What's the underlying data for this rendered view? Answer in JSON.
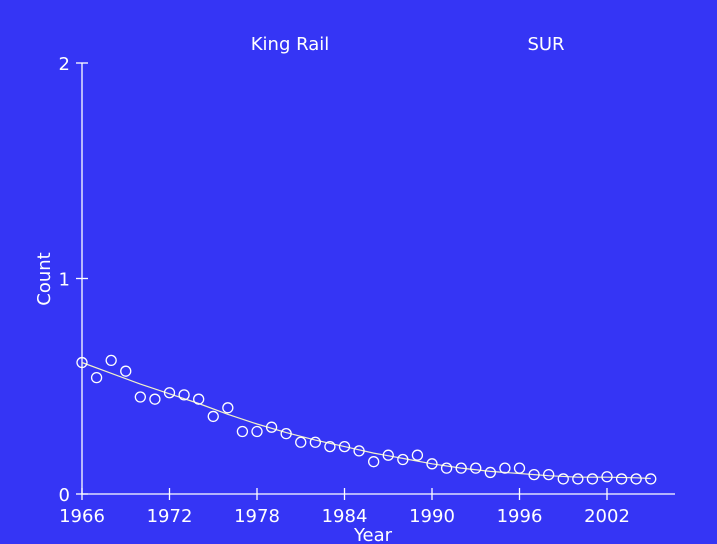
{
  "chart_data": {
    "type": "scatter",
    "title": "King Rail",
    "subtitle": "SUR",
    "xlabel": "Year",
    "ylabel": "Count",
    "xlim": [
      1966,
      2004
    ],
    "ylim": [
      0,
      2
    ],
    "xticks": [
      "1966",
      "1972",
      "1978",
      "1984",
      "1990",
      "1996",
      "2002"
    ],
    "yticks": [
      "0",
      "1",
      "2"
    ],
    "colors": {
      "background": "#3535f5",
      "foreground": "#ffffff",
      "trend": "#f2f2c8"
    },
    "series": [
      {
        "kind": "points",
        "x": [
          1966,
          1967,
          1968,
          1969,
          1970,
          1971,
          1972,
          1973,
          1974,
          1975,
          1976,
          1977,
          1978,
          1979,
          1980,
          1981,
          1982,
          1983,
          1984,
          1985,
          1986,
          1987,
          1988,
          1989,
          1990,
          1991,
          1992,
          1993,
          1994,
          1995,
          1996,
          1997,
          1998,
          1999,
          2000,
          2001,
          2002,
          2003,
          2004,
          2005
        ],
        "y": [
          0.61,
          0.54,
          0.62,
          0.57,
          0.45,
          0.44,
          0.47,
          0.46,
          0.44,
          0.36,
          0.4,
          0.29,
          0.29,
          0.31,
          0.28,
          0.24,
          0.24,
          0.22,
          0.22,
          0.2,
          0.15,
          0.18,
          0.16,
          0.18,
          0.14,
          0.12,
          0.12,
          0.12,
          0.1,
          0.12,
          0.12,
          0.09,
          0.09,
          0.07,
          0.07,
          0.07,
          0.08,
          0.07,
          0.07,
          0.07
        ]
      },
      {
        "kind": "trend",
        "x": [
          1966,
          1968,
          1970,
          1972,
          1974,
          1976,
          1978,
          1980,
          1982,
          1984,
          1986,
          1988,
          1990,
          1992,
          1994,
          1996,
          1998,
          2000,
          2002,
          2004,
          2005
        ],
        "y": [
          0.61,
          0.56,
          0.51,
          0.465,
          0.42,
          0.37,
          0.325,
          0.285,
          0.25,
          0.22,
          0.19,
          0.165,
          0.14,
          0.12,
          0.105,
          0.095,
          0.085,
          0.078,
          0.078,
          0.075,
          0.072
        ]
      }
    ]
  }
}
